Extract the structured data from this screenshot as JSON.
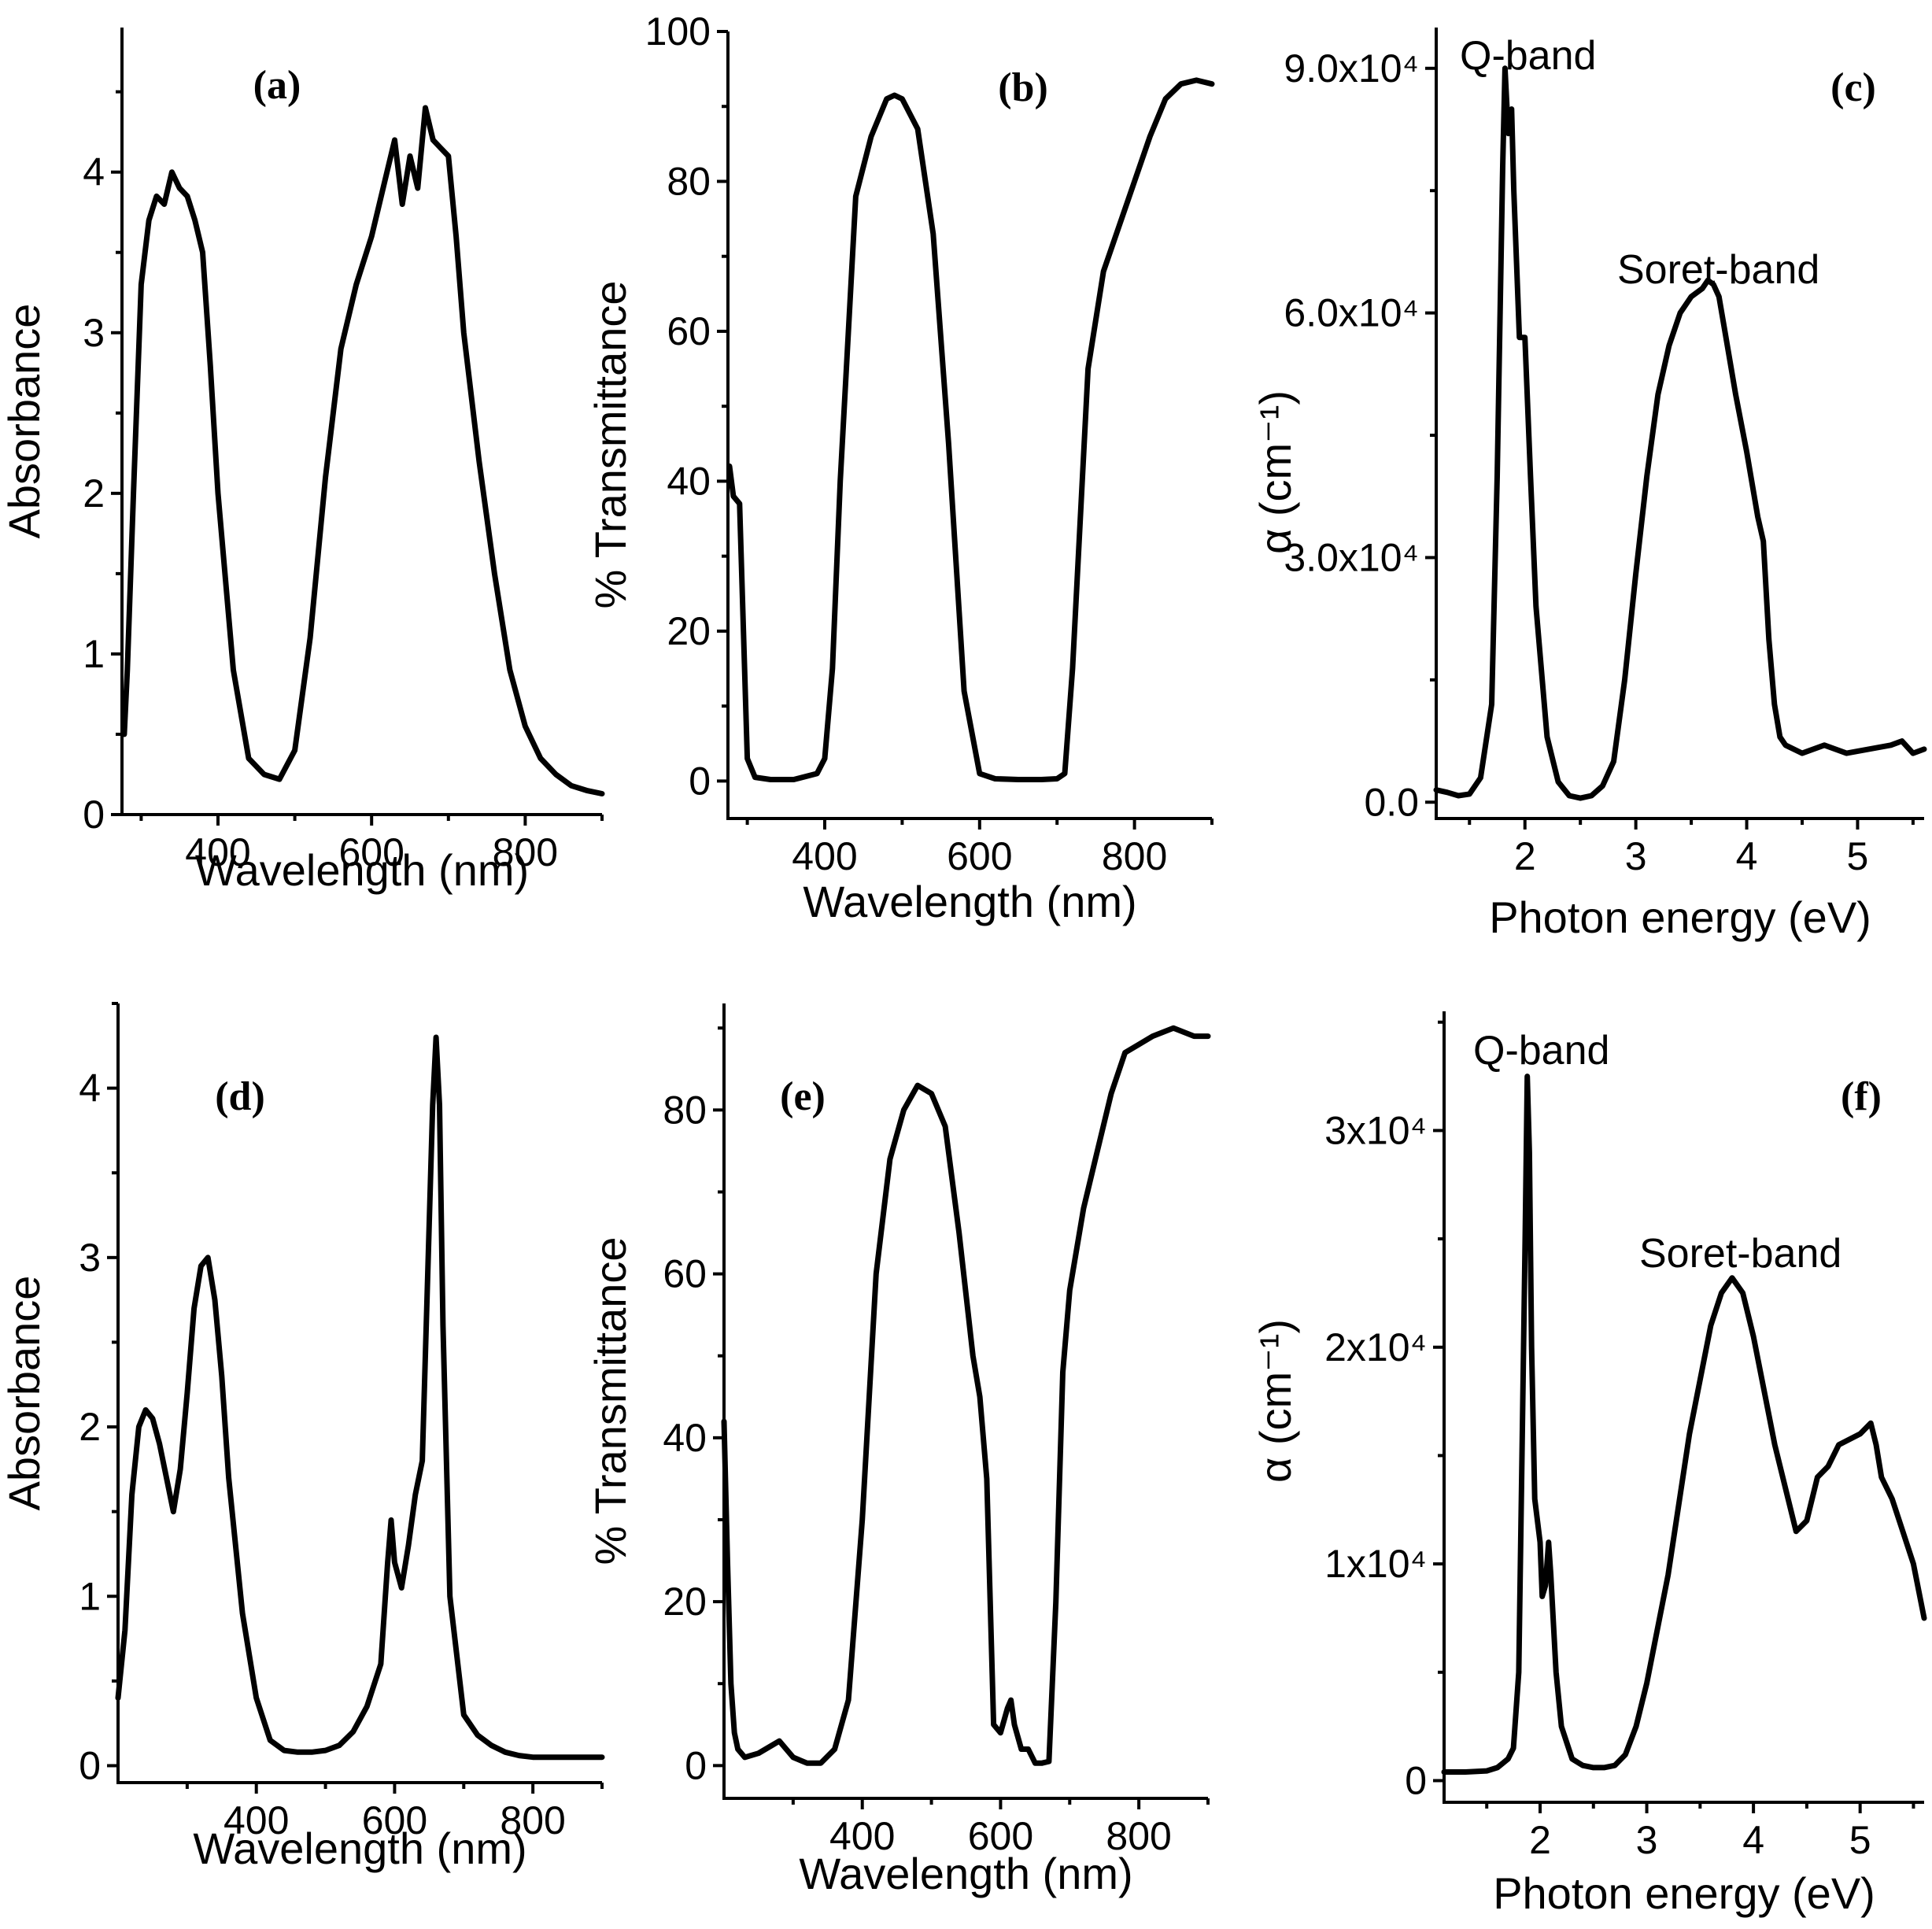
{
  "chart_data": [
    {
      "panel": "(a)",
      "type": "line",
      "xlabel": "Wavelength (nm)",
      "ylabel": "Absorbance",
      "xlim": [
        275,
        900
      ],
      "ylim": [
        0,
        4.9
      ],
      "xticks": [
        400,
        600,
        800
      ],
      "yticks": [
        0,
        1,
        2,
        3,
        4
      ],
      "annotations": [],
      "series": [
        {
          "name": "Absorbance",
          "x": [
            278,
            282,
            290,
            300,
            310,
            320,
            330,
            340,
            350,
            360,
            370,
            380,
            390,
            400,
            420,
            440,
            460,
            480,
            500,
            520,
            540,
            560,
            580,
            600,
            620,
            630,
            640,
            650,
            660,
            670,
            680,
            690,
            700,
            710,
            720,
            740,
            760,
            780,
            800,
            820,
            840,
            860,
            880,
            900
          ],
          "y": [
            0.5,
            0.9,
            2.0,
            3.3,
            3.7,
            3.85,
            3.8,
            4.0,
            3.9,
            3.85,
            3.7,
            3.5,
            2.8,
            2.0,
            0.9,
            0.35,
            0.25,
            0.22,
            0.4,
            1.1,
            2.1,
            2.9,
            3.3,
            3.6,
            4.0,
            4.2,
            3.8,
            4.1,
            3.9,
            4.4,
            4.2,
            4.15,
            4.1,
            3.6,
            3.0,
            2.2,
            1.5,
            0.9,
            0.55,
            0.35,
            0.25,
            0.18,
            0.15,
            0.13
          ]
        }
      ]
    },
    {
      "panel": "(b)",
      "type": "line",
      "xlabel": "Wavelength (nm)",
      "ylabel": "% Transmittance",
      "xlim": [
        275,
        900
      ],
      "ylim": [
        -5,
        100
      ],
      "xticks": [
        400,
        600,
        800
      ],
      "yticks": [
        0,
        20,
        40,
        60,
        80,
        100
      ],
      "annotations": [],
      "series": [
        {
          "name": "Transmittance",
          "x": [
            277,
            282,
            290,
            295,
            300,
            310,
            330,
            360,
            390,
            400,
            410,
            420,
            440,
            460,
            480,
            490,
            500,
            520,
            540,
            560,
            580,
            600,
            620,
            650,
            680,
            700,
            710,
            720,
            740,
            760,
            780,
            800,
            820,
            840,
            860,
            880,
            900
          ],
          "y": [
            42,
            38,
            37,
            20,
            3,
            0.5,
            0.2,
            0.2,
            1,
            3,
            15,
            40,
            78,
            86,
            91,
            91.5,
            91,
            87,
            73,
            45,
            12,
            1,
            0.3,
            0.2,
            0.2,
            0.3,
            1,
            15,
            55,
            68,
            74,
            80,
            86,
            91,
            93,
            93.5,
            93
          ]
        }
      ]
    },
    {
      "panel": "(c)",
      "type": "line",
      "xlabel": "Photon energy (eV)",
      "ylabel": "α (cm⁻¹)",
      "xlim": [
        1.2,
        5.6
      ],
      "ylim": [
        -2000,
        95000
      ],
      "xticks": [
        2,
        3,
        4,
        5
      ],
      "yticks": [
        0,
        30000,
        60000,
        90000
      ],
      "ytick_labels": [
        "0.0",
        "3.0x10⁴",
        "6.0x10⁴",
        "9.0x10⁴"
      ],
      "annotations": [
        "Q-band",
        "Soret-band"
      ],
      "series": [
        {
          "name": "α",
          "x": [
            1.2,
            1.3,
            1.4,
            1.5,
            1.6,
            1.7,
            1.75,
            1.8,
            1.82,
            1.85,
            1.88,
            1.9,
            1.95,
            2.0,
            2.05,
            2.1,
            2.2,
            2.3,
            2.4,
            2.5,
            2.6,
            2.7,
            2.8,
            2.9,
            3.0,
            3.1,
            3.2,
            3.3,
            3.4,
            3.5,
            3.6,
            3.65,
            3.7,
            3.75,
            3.8,
            3.9,
            4.0,
            4.1,
            4.15,
            4.2,
            4.25,
            4.3,
            4.35,
            4.5,
            4.7,
            4.9,
            5.1,
            5.3,
            5.4,
            5.5,
            5.6
          ],
          "y": [
            1500,
            1200,
            800,
            1000,
            3000,
            12000,
            40000,
            78000,
            90000,
            82000,
            85000,
            75000,
            57000,
            57000,
            40000,
            24000,
            8000,
            2500,
            800,
            500,
            800,
            2000,
            5000,
            15000,
            28000,
            40000,
            50000,
            56000,
            60000,
            62000,
            63000,
            64000,
            63500,
            62000,
            58000,
            50000,
            43000,
            35000,
            32000,
            20000,
            12000,
            8000,
            7000,
            6000,
            7000,
            6000,
            6500,
            7000,
            7500,
            6000,
            6500
          ]
        }
      ]
    },
    {
      "panel": "(d)",
      "type": "line",
      "xlabel": "Wavelength (nm)",
      "ylabel": "Absorbance",
      "xlim": [
        200,
        900
      ],
      "ylim": [
        -0.1,
        4.5
      ],
      "xticks": [
        400,
        600,
        800
      ],
      "yticks": [
        0,
        1,
        2,
        3,
        4
      ],
      "annotations": [],
      "series": [
        {
          "name": "Absorbance",
          "x": [
            200,
            210,
            220,
            230,
            240,
            250,
            260,
            270,
            280,
            290,
            300,
            310,
            320,
            330,
            340,
            350,
            360,
            380,
            400,
            420,
            440,
            460,
            480,
            500,
            520,
            540,
            560,
            580,
            590,
            595,
            600,
            610,
            620,
            630,
            640,
            650,
            655,
            660,
            665,
            670,
            680,
            700,
            720,
            740,
            760,
            780,
            800,
            850,
            900
          ],
          "y": [
            0.4,
            0.8,
            1.6,
            2.0,
            2.1,
            2.05,
            1.9,
            1.7,
            1.5,
            1.75,
            2.2,
            2.7,
            2.95,
            3.0,
            2.75,
            2.3,
            1.7,
            0.9,
            0.4,
            0.15,
            0.09,
            0.08,
            0.08,
            0.09,
            0.12,
            0.2,
            0.35,
            0.6,
            1.2,
            1.45,
            1.2,
            1.05,
            1.3,
            1.6,
            1.8,
            3.2,
            3.9,
            4.3,
            3.9,
            2.6,
            1.0,
            0.3,
            0.18,
            0.12,
            0.08,
            0.06,
            0.05,
            0.05,
            0.05
          ]
        }
      ]
    },
    {
      "panel": "(e)",
      "type": "line",
      "xlabel": "Wavelength (nm)",
      "ylabel": "% Transmittance",
      "xlim": [
        200,
        900
      ],
      "ylim": [
        -4,
        93
      ],
      "xticks": [
        400,
        600,
        800
      ],
      "yticks": [
        0,
        20,
        40,
        60,
        80
      ],
      "annotations": [],
      "series": [
        {
          "name": "Transmittance",
          "x": [
            200,
            205,
            210,
            215,
            220,
            230,
            250,
            270,
            280,
            290,
            300,
            320,
            340,
            360,
            380,
            400,
            420,
            440,
            460,
            480,
            500,
            520,
            540,
            560,
            570,
            580,
            590,
            600,
            610,
            615,
            620,
            630,
            640,
            650,
            660,
            670,
            680,
            690,
            700,
            720,
            740,
            760,
            780,
            800,
            820,
            850,
            880,
            900
          ],
          "y": [
            42,
            25,
            10,
            4,
            2,
            1,
            1.5,
            2.5,
            3,
            2,
            1,
            0.3,
            0.3,
            2,
            8,
            30,
            60,
            74,
            80,
            83,
            82,
            78,
            65,
            50,
            45,
            35,
            5,
            4,
            7,
            8,
            5,
            2,
            2,
            0.3,
            0.3,
            0.5,
            20,
            48,
            58,
            68,
            75,
            82,
            87,
            88,
            89,
            90,
            89,
            89
          ]
        }
      ]
    },
    {
      "panel": "(f)",
      "type": "line",
      "xlabel": "Photon energy (eV)",
      "ylabel": "α (cm⁻¹)",
      "xlim": [
        1.1,
        5.6
      ],
      "ylim": [
        -1000,
        35500
      ],
      "xticks": [
        2,
        3,
        4,
        5
      ],
      "yticks": [
        0,
        10000,
        20000,
        30000
      ],
      "ytick_labels": [
        "0",
        "1x10⁴",
        "2x10⁴",
        "3x10⁴"
      ],
      "annotations": [
        "Q-band",
        "Soret-band"
      ],
      "series": [
        {
          "name": "α",
          "x": [
            1.1,
            1.3,
            1.5,
            1.6,
            1.7,
            1.75,
            1.8,
            1.83,
            1.86,
            1.88,
            1.9,
            1.92,
            1.95,
            2.0,
            2.02,
            2.05,
            2.08,
            2.1,
            2.15,
            2.2,
            2.3,
            2.4,
            2.5,
            2.6,
            2.7,
            2.8,
            2.9,
            3.0,
            3.2,
            3.4,
            3.6,
            3.7,
            3.8,
            3.9,
            4.0,
            4.2,
            4.4,
            4.5,
            4.6,
            4.7,
            4.8,
            5.0,
            5.1,
            5.15,
            5.2,
            5.3,
            5.4,
            5.5,
            5.6
          ],
          "y": [
            400,
            400,
            450,
            600,
            1000,
            1500,
            5000,
            15000,
            25000,
            32500,
            29000,
            20000,
            13000,
            11000,
            8500,
            9000,
            11000,
            9500,
            5000,
            2500,
            1000,
            700,
            600,
            600,
            700,
            1200,
            2500,
            4500,
            9500,
            16000,
            21000,
            22500,
            23200,
            22500,
            20500,
            15500,
            11500,
            12000,
            14000,
            14500,
            15500,
            16000,
            16500,
            15500,
            14000,
            13000,
            11500,
            10000,
            7500
          ]
        }
      ]
    }
  ]
}
